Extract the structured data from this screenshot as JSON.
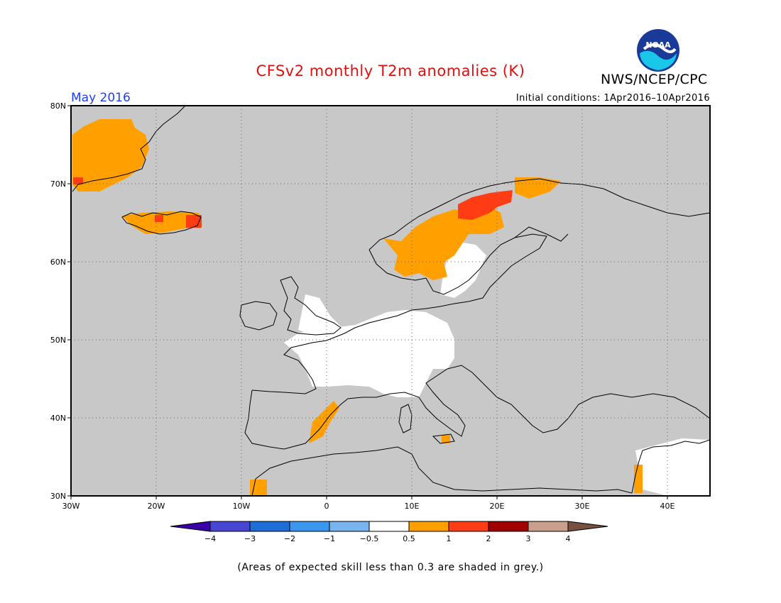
{
  "title": "CFSv2 monthly T2m anomalies (K)",
  "agency": "NWS/NCEP/CPC",
  "logo_text": "NOAA",
  "month": "May 2016",
  "initial_conditions": "Initial conditions: 1Apr2016–10Apr2016",
  "footnote": "(Areas of expected skill less than 0.3 are shaded in grey.)",
  "map": {
    "lon_range": [
      -30,
      45
    ],
    "lat_range": [
      30,
      80
    ],
    "lat_labels": [
      "80N",
      "70N",
      "60N",
      "50N",
      "40N",
      "30N"
    ],
    "lon_labels": [
      "30W",
      "20W",
      "10W",
      "0",
      "10E",
      "20E",
      "30E",
      "40E"
    ],
    "background_color": "#c8c8c8",
    "grid_style": "dotted",
    "anomaly_regions": [
      {
        "bin": "1 to 2",
        "color": "#ff3c14",
        "lon": [
          14,
          24
        ],
        "lat": [
          65,
          69
        ]
      },
      {
        "bin": "0.5 to 1",
        "color": "#ffa000",
        "lon": [
          9,
          16
        ],
        "lat": [
          59,
          66
        ]
      },
      {
        "bin": "0.5 to 1",
        "color": "#ffa000",
        "lon": [
          -30,
          -22
        ],
        "lat": [
          69,
          78
        ]
      },
      {
        "bin": "0.5 to 1",
        "color": "#ffa000",
        "lon": [
          -24,
          -15
        ],
        "lat": [
          63.5,
          66.5
        ]
      },
      {
        "bin": "-0.5 to 0.5",
        "color": "#ffffff",
        "lon": [
          -2,
          12
        ],
        "lat": [
          43,
          52
        ]
      },
      {
        "bin": "-0.5 to 0.5",
        "color": "#ffffff",
        "lon": [
          36,
          45
        ],
        "lat": [
          30,
          37
        ]
      }
    ]
  },
  "colorbar": {
    "colors": [
      "#3a00a8",
      "#4646d2",
      "#1e6ed7",
      "#3c96f0",
      "#78b4f0",
      "#ffffff",
      "#ffa000",
      "#ff3c14",
      "#a00000",
      "#c8a08c",
      "#785040"
    ],
    "labels": [
      "−4",
      "−3",
      "−2",
      "−1",
      "−0.5",
      "0.5",
      "1",
      "2",
      "3",
      "4"
    ]
  }
}
